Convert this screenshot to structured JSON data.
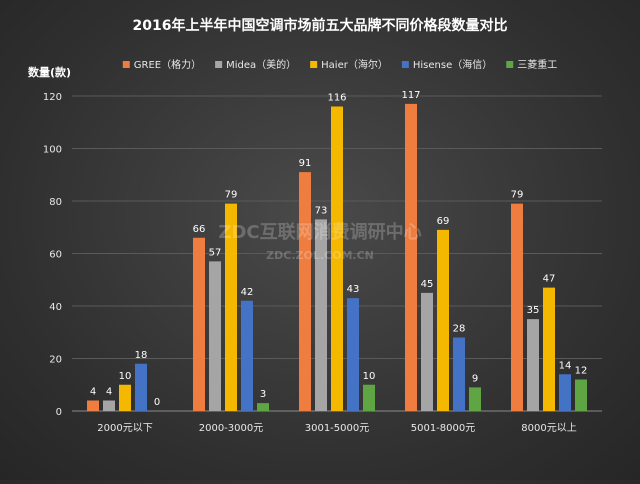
{
  "chart_data": {
    "type": "bar",
    "title": "2016年上半年中国空调市场前五大品牌不同价格段数量对比",
    "ylabel": "数量(款)",
    "xlabel": "",
    "ylim": [
      0,
      120
    ],
    "yticks": [
      0,
      20,
      40,
      60,
      80,
      100,
      120
    ],
    "grid": true,
    "legend_position": "top",
    "categories": [
      "2000元以下",
      "2000-3000元",
      "3001-5000元",
      "5001-8000元",
      "8000元以上"
    ],
    "series": [
      {
        "name": "GREE（格力）",
        "color": "#ee7d3f",
        "values": [
          4,
          66,
          91,
          117,
          79
        ]
      },
      {
        "name": "Midea（美的）",
        "color": "#a5a5a5",
        "values": [
          4,
          57,
          73,
          45,
          35
        ]
      },
      {
        "name": "Haier（海尔）",
        "color": "#f5b800",
        "values": [
          10,
          79,
          116,
          69,
          47
        ]
      },
      {
        "name": "Hisense（海信）",
        "color": "#4472c4",
        "values": [
          18,
          42,
          43,
          28,
          14
        ]
      },
      {
        "name": "三菱重工",
        "color": "#5fa543",
        "values": [
          0,
          3,
          10,
          9,
          12
        ]
      }
    ]
  },
  "watermark": {
    "line1": "ZDC互联网消费调研中心",
    "line2": "ZDC.ZOL.COM.CN"
  }
}
